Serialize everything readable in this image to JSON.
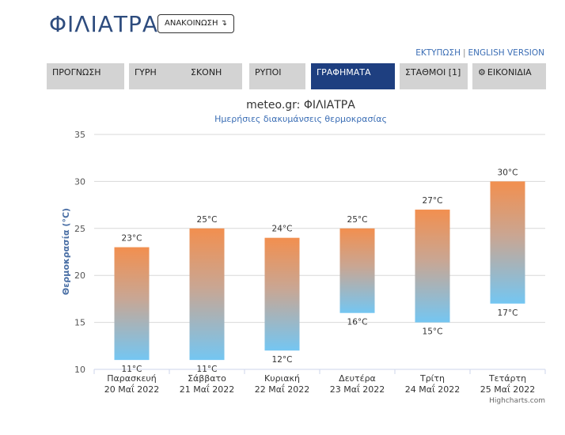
{
  "header": {
    "title": "ΦΙΛΙΑΤΡΑ",
    "announce_label": "ΑΝΑΚΟΙΝΩΣΗ ↴",
    "links": {
      "print": "ΕΚΤΥΠΩΣΗ",
      "separator": "|",
      "english": "ENGLISH VERSION"
    }
  },
  "tabs": [
    {
      "label": "ΠΡΟΓΝΩΣΗ",
      "active": false
    },
    {
      "label": "ΓΥΡΗ",
      "active": false
    },
    {
      "label": "ΣΚΟΝΗ",
      "active": false
    },
    {
      "label": "ΡΥΠΟΙ",
      "active": false
    },
    {
      "label": "ΓΡΑΦΗΜΑΤΑ",
      "active": true
    },
    {
      "label": "ΣΤΑΘΜΟΙ [1]",
      "active": false
    },
    {
      "label": "ΕΙΚΟΝΙΔΙΑ",
      "active": false,
      "icon": "gear-icon"
    }
  ],
  "chart_data": {
    "type": "bar",
    "title": "meteo.gr: ΦΙΛΙΑΤΡΑ",
    "subtitle": "Ημερήσιες διακυμάνσεις θερμοκρασίας",
    "ylabel": "Θερμοκρασία (°C)",
    "xlabel": "",
    "ylim": [
      10,
      35
    ],
    "yticks": [
      10,
      15,
      20,
      25,
      30,
      35
    ],
    "grid": true,
    "categories": [
      {
        "day": "Παρασκευή",
        "date": "20 Μαΐ 2022"
      },
      {
        "day": "Σάββατο",
        "date": "21 Μαΐ 2022"
      },
      {
        "day": "Κυριακή",
        "date": "22 Μαΐ 2022"
      },
      {
        "day": "Δευτέρα",
        "date": "23 Μαΐ 2022"
      },
      {
        "day": "Τρίτη",
        "date": "24 Μαΐ 2022"
      },
      {
        "day": "Τετάρτη",
        "date": "25 Μαΐ 2022"
      }
    ],
    "min": [
      11,
      11,
      12,
      16,
      15,
      17
    ],
    "max": [
      23,
      25,
      24,
      25,
      27,
      30
    ],
    "min_labels": [
      "11°C",
      "11°C",
      "12°C",
      "16°C",
      "15°C",
      "17°C"
    ],
    "max_labels": [
      "23°C",
      "25°C",
      "24°C",
      "25°C",
      "27°C",
      "30°C"
    ],
    "colors": {
      "top": "#f28f4f",
      "bottom": "#74c6f2",
      "grid": "#d8d8d8",
      "axis": "#ccd6eb"
    },
    "credits": "Highcharts.com"
  }
}
